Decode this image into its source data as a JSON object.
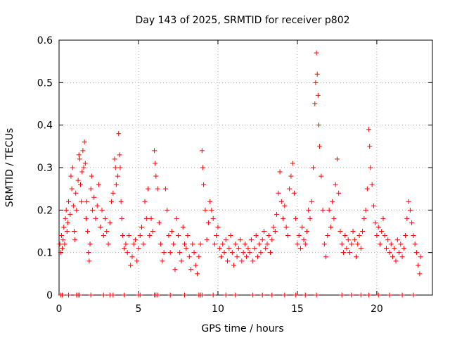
{
  "chart_data": {
    "type": "scatter",
    "title": "Day 143 of 2025, SRMTID for receiver p802",
    "xlabel": "GPS time / hours",
    "ylabel": "SRMTID / TECUs",
    "xlim": [
      0,
      23.5
    ],
    "ylim": [
      0,
      0.6
    ],
    "xticks": [
      0,
      5,
      10,
      15,
      20
    ],
    "yticks": [
      0,
      0.1,
      0.2,
      0.3,
      0.4,
      0.5,
      0.6
    ],
    "xtick_labels": [
      "0",
      "5",
      "10",
      "15",
      "20"
    ],
    "ytick_labels": [
      "0",
      "0.1",
      "0.2",
      "0.3",
      "0.4",
      "0.5",
      "0.6"
    ],
    "grid": true,
    "marker": "+",
    "color": "#ff0000",
    "series": [
      {
        "name": "SRMTID",
        "points": [
          [
            0.05,
            0.12
          ],
          [
            0.1,
            0.1
          ],
          [
            0.15,
            0.14
          ],
          [
            0.2,
            0.11
          ],
          [
            0.25,
            0.13
          ],
          [
            0.3,
            0.16
          ],
          [
            0.35,
            0.12
          ],
          [
            0.4,
            0.18
          ],
          [
            0.45,
            0.2
          ],
          [
            0.5,
            0.15
          ],
          [
            0.55,
            0.17
          ],
          [
            0.6,
            0.22
          ],
          [
            0.7,
            0.19
          ],
          [
            0.75,
            0.28
          ],
          [
            0.8,
            0.25
          ],
          [
            0.85,
            0.3
          ],
          [
            0.9,
            0.21
          ],
          [
            0.95,
            0.15
          ],
          [
            1.0,
            0.13
          ],
          [
            1.05,
            0.24
          ],
          [
            1.1,
            0.2
          ],
          [
            1.2,
            0.27
          ],
          [
            1.25,
            0.33
          ],
          [
            1.3,
            0.32
          ],
          [
            1.35,
            0.26
          ],
          [
            1.4,
            0.22
          ],
          [
            1.45,
            0.29
          ],
          [
            1.5,
            0.34
          ],
          [
            1.55,
            0.3
          ],
          [
            1.6,
            0.36
          ],
          [
            1.65,
            0.31
          ],
          [
            1.7,
            0.18
          ],
          [
            1.75,
            0.22
          ],
          [
            1.8,
            0.15
          ],
          [
            1.85,
            0.1
          ],
          [
            1.9,
            0.08
          ],
          [
            1.95,
            0.12
          ],
          [
            2.0,
            0.25
          ],
          [
            2.05,
            0.28
          ],
          [
            2.1,
            0.2
          ],
          [
            2.2,
            0.23
          ],
          [
            2.3,
            0.18
          ],
          [
            2.4,
            0.21
          ],
          [
            2.5,
            0.26
          ],
          [
            2.6,
            0.16
          ],
          [
            2.7,
            0.2
          ],
          [
            2.8,
            0.14
          ],
          [
            2.9,
            0.18
          ],
          [
            3.0,
            0.15
          ],
          [
            3.1,
            0.12
          ],
          [
            3.2,
            0.17
          ],
          [
            3.3,
            0.22
          ],
          [
            3.4,
            0.24
          ],
          [
            3.5,
            0.32
          ],
          [
            3.55,
            0.3
          ],
          [
            3.6,
            0.26
          ],
          [
            3.7,
            0.28
          ],
          [
            3.75,
            0.38
          ],
          [
            3.8,
            0.33
          ],
          [
            3.85,
            0.3
          ],
          [
            3.9,
            0.22
          ],
          [
            3.95,
            0.18
          ],
          [
            4.0,
            0.14
          ],
          [
            4.1,
            0.11
          ],
          [
            4.2,
            0.12
          ],
          [
            4.3,
            0.1
          ],
          [
            4.4,
            0.14
          ],
          [
            4.5,
            0.07
          ],
          [
            4.6,
            0.09
          ],
          [
            4.7,
            0.12
          ],
          [
            4.8,
            0.13
          ],
          [
            4.9,
            0.08
          ],
          [
            5.0,
            0.11
          ],
          [
            5.1,
            0.14
          ],
          [
            5.2,
            0.16
          ],
          [
            5.3,
            0.12
          ],
          [
            5.4,
            0.22
          ],
          [
            5.5,
            0.18
          ],
          [
            5.6,
            0.25
          ],
          [
            5.7,
            0.14
          ],
          [
            5.8,
            0.18
          ],
          [
            5.9,
            0.15
          ],
          [
            6.0,
            0.34
          ],
          [
            6.05,
            0.31
          ],
          [
            6.1,
            0.28
          ],
          [
            6.2,
            0.25
          ],
          [
            6.3,
            0.17
          ],
          [
            6.4,
            0.12
          ],
          [
            6.5,
            0.08
          ],
          [
            6.6,
            0.1
          ],
          [
            6.7,
            0.25
          ],
          [
            6.8,
            0.2
          ],
          [
            6.9,
            0.14
          ],
          [
            7.0,
            0.1
          ],
          [
            7.1,
            0.15
          ],
          [
            7.2,
            0.12
          ],
          [
            7.3,
            0.06
          ],
          [
            7.4,
            0.18
          ],
          [
            7.5,
            0.14
          ],
          [
            7.6,
            0.1
          ],
          [
            7.7,
            0.08
          ],
          [
            7.8,
            0.16
          ],
          [
            7.9,
            0.12
          ],
          [
            8.0,
            0.11
          ],
          [
            8.1,
            0.14
          ],
          [
            8.2,
            0.09
          ],
          [
            8.3,
            0.06
          ],
          [
            8.4,
            0.12
          ],
          [
            8.5,
            0.1
          ],
          [
            8.6,
            0.07
          ],
          [
            8.7,
            0.05
          ],
          [
            8.8,
            0.09
          ],
          [
            8.9,
            0.12
          ],
          [
            9.0,
            0.34
          ],
          [
            9.05,
            0.3
          ],
          [
            9.1,
            0.26
          ],
          [
            9.2,
            0.2
          ],
          [
            9.3,
            0.13
          ],
          [
            9.4,
            0.17
          ],
          [
            9.5,
            0.22
          ],
          [
            9.6,
            0.2
          ],
          [
            9.7,
            0.18
          ],
          [
            9.8,
            0.12
          ],
          [
            9.9,
            0.14
          ],
          [
            10.0,
            0.16
          ],
          [
            10.1,
            0.11
          ],
          [
            10.2,
            0.09
          ],
          [
            10.3,
            0.12
          ],
          [
            10.4,
            0.1
          ],
          [
            10.5,
            0.13
          ],
          [
            10.6,
            0.08
          ],
          [
            10.7,
            0.11
          ],
          [
            10.8,
            0.14
          ],
          [
            10.9,
            0.1
          ],
          [
            11.0,
            0.07
          ],
          [
            11.1,
            0.12
          ],
          [
            11.2,
            0.09
          ],
          [
            11.3,
            0.11
          ],
          [
            11.4,
            0.13
          ],
          [
            11.5,
            0.08
          ],
          [
            11.6,
            0.1
          ],
          [
            11.7,
            0.12
          ],
          [
            11.8,
            0.09
          ],
          [
            11.9,
            0.11
          ],
          [
            12.0,
            0.1
          ],
          [
            12.1,
            0.13
          ],
          [
            12.2,
            0.08
          ],
          [
            12.3,
            0.11
          ],
          [
            12.4,
            0.14
          ],
          [
            12.5,
            0.09
          ],
          [
            12.6,
            0.12
          ],
          [
            12.7,
            0.1
          ],
          [
            12.8,
            0.13
          ],
          [
            12.9,
            0.15
          ],
          [
            13.0,
            0.11
          ],
          [
            13.1,
            0.12
          ],
          [
            13.2,
            0.14
          ],
          [
            13.3,
            0.1
          ],
          [
            13.4,
            0.13
          ],
          [
            13.5,
            0.16
          ],
          [
            13.6,
            0.15
          ],
          [
            13.7,
            0.19
          ],
          [
            13.8,
            0.24
          ],
          [
            13.9,
            0.29
          ],
          [
            14.0,
            0.22
          ],
          [
            14.1,
            0.18
          ],
          [
            14.2,
            0.21
          ],
          [
            14.3,
            0.16
          ],
          [
            14.4,
            0.14
          ],
          [
            14.5,
            0.25
          ],
          [
            14.6,
            0.28
          ],
          [
            14.7,
            0.31
          ],
          [
            14.8,
            0.24
          ],
          [
            14.9,
            0.18
          ],
          [
            15.0,
            0.12
          ],
          [
            15.1,
            0.14
          ],
          [
            15.2,
            0.11
          ],
          [
            15.3,
            0.16
          ],
          [
            15.4,
            0.13
          ],
          [
            15.5,
            0.12
          ],
          [
            15.6,
            0.15
          ],
          [
            15.7,
            0.2
          ],
          [
            15.8,
            0.18
          ],
          [
            15.9,
            0.22
          ],
          [
            16.0,
            0.3
          ],
          [
            16.1,
            0.45
          ],
          [
            16.15,
            0.5
          ],
          [
            16.2,
            0.57
          ],
          [
            16.25,
            0.52
          ],
          [
            16.3,
            0.47
          ],
          [
            16.35,
            0.4
          ],
          [
            16.4,
            0.35
          ],
          [
            16.5,
            0.28
          ],
          [
            16.6,
            0.2
          ],
          [
            16.7,
            0.12
          ],
          [
            16.8,
            0.09
          ],
          [
            16.9,
            0.14
          ],
          [
            17.0,
            0.2
          ],
          [
            17.1,
            0.16
          ],
          [
            17.2,
            0.22
          ],
          [
            17.3,
            0.18
          ],
          [
            17.4,
            0.26
          ],
          [
            17.5,
            0.32
          ],
          [
            17.6,
            0.24
          ],
          [
            17.7,
            0.15
          ],
          [
            17.8,
            0.12
          ],
          [
            17.9,
            0.1
          ],
          [
            18.0,
            0.14
          ],
          [
            18.1,
            0.11
          ],
          [
            18.2,
            0.13
          ],
          [
            18.3,
            0.1
          ],
          [
            18.4,
            0.12
          ],
          [
            18.5,
            0.15
          ],
          [
            18.6,
            0.13
          ],
          [
            18.7,
            0.09
          ],
          [
            18.8,
            0.12
          ],
          [
            18.9,
            0.14
          ],
          [
            19.0,
            0.11
          ],
          [
            19.1,
            0.15
          ],
          [
            19.2,
            0.18
          ],
          [
            19.3,
            0.2
          ],
          [
            19.4,
            0.25
          ],
          [
            19.5,
            0.39
          ],
          [
            19.55,
            0.35
          ],
          [
            19.6,
            0.3
          ],
          [
            19.7,
            0.26
          ],
          [
            19.8,
            0.21
          ],
          [
            19.9,
            0.17
          ],
          [
            20.0,
            0.14
          ],
          [
            20.1,
            0.16
          ],
          [
            20.2,
            0.12
          ],
          [
            20.3,
            0.15
          ],
          [
            20.4,
            0.18
          ],
          [
            20.5,
            0.14
          ],
          [
            20.6,
            0.11
          ],
          [
            20.7,
            0.13
          ],
          [
            20.8,
            0.1
          ],
          [
            20.9,
            0.12
          ],
          [
            21.0,
            0.09
          ],
          [
            21.1,
            0.11
          ],
          [
            21.2,
            0.08
          ],
          [
            21.3,
            0.13
          ],
          [
            21.4,
            0.1
          ],
          [
            21.5,
            0.12
          ],
          [
            21.6,
            0.09
          ],
          [
            21.7,
            0.11
          ],
          [
            21.8,
            0.14
          ],
          [
            21.9,
            0.18
          ],
          [
            22.0,
            0.22
          ],
          [
            22.1,
            0.2
          ],
          [
            22.2,
            0.17
          ],
          [
            22.3,
            0.14
          ],
          [
            22.4,
            0.12
          ],
          [
            22.5,
            0.1
          ],
          [
            22.6,
            0.07
          ],
          [
            22.7,
            0.05
          ],
          [
            22.75,
            0.09
          ]
        ]
      },
      {
        "name": "zero-line",
        "points": [
          [
            0.1,
            0
          ],
          [
            0.2,
            0
          ],
          [
            0.6,
            0
          ],
          [
            1.1,
            0
          ],
          [
            1.2,
            0
          ],
          [
            1.3,
            0
          ],
          [
            2.0,
            0
          ],
          [
            2.8,
            0
          ],
          [
            3.2,
            0
          ],
          [
            3.4,
            0
          ],
          [
            4.1,
            0
          ],
          [
            5.0,
            0
          ],
          [
            5.1,
            0
          ],
          [
            6.0,
            0
          ],
          [
            6.1,
            0
          ],
          [
            6.2,
            0
          ],
          [
            7.0,
            0
          ],
          [
            7.9,
            0
          ],
          [
            8.8,
            0
          ],
          [
            8.9,
            0
          ],
          [
            9.0,
            0
          ],
          [
            9.7,
            0
          ],
          [
            10.5,
            0
          ],
          [
            11.1,
            0
          ],
          [
            12.2,
            0
          ],
          [
            12.8,
            0
          ],
          [
            13.4,
            0
          ],
          [
            14.2,
            0
          ],
          [
            14.9,
            0
          ],
          [
            15.5,
            0
          ],
          [
            16.2,
            0
          ],
          [
            17.8,
            0
          ],
          [
            18.4,
            0
          ],
          [
            19.0,
            0
          ],
          [
            19.5,
            0
          ],
          [
            20.1,
            0
          ],
          [
            20.8,
            0
          ],
          [
            21.6,
            0
          ],
          [
            22.3,
            0
          ]
        ]
      }
    ]
  }
}
